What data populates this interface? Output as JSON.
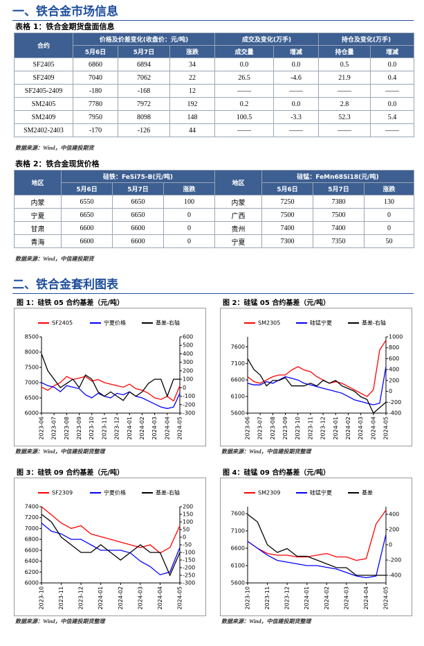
{
  "sections": [
    "一、铁合金市场信息",
    "二、铁合金套利图表"
  ],
  "table1": {
    "caption": "表格 1：铁合金期货盘面信息",
    "header1": [
      "合约",
      "价格及价差变化(收盘价：元/吨)",
      "成交及变化(万手)",
      "持仓及变化(万手)"
    ],
    "header2": [
      "5月6日",
      "5月7日",
      "涨跌",
      "成交量",
      "增减",
      "持仓量",
      "增减"
    ],
    "rows": [
      [
        "SF2405",
        "6860",
        "6894",
        "34",
        "0.0",
        "0.0",
        "0.5",
        "0.0"
      ],
      [
        "SF2409",
        "7040",
        "7062",
        "22",
        "26.5",
        "-4.6",
        "21.9",
        "0.4"
      ],
      [
        "SF2405-2409",
        "-180",
        "-168",
        "12",
        "——",
        "——",
        "——",
        "——"
      ],
      [
        "SM2405",
        "7780",
        "7972",
        "192",
        "0.2",
        "0.0",
        "2.8",
        "0.0"
      ],
      [
        "SM2409",
        "7950",
        "8098",
        "148",
        "100.5",
        "-3.3",
        "52.3",
        "5.4"
      ],
      [
        "SM2402-2403",
        "-170",
        "-126",
        "44",
        "——",
        "——",
        "——",
        "——"
      ]
    ],
    "source": "数据来源：Wind，中信建投期货"
  },
  "table2": {
    "caption": "表格 2：铁合金现货价格",
    "header1": [
      "地区",
      "硅铁：FeSi75-B(元/吨)",
      "地区",
      "硅锰：FeMn68Si18(元/吨)"
    ],
    "header2": [
      "5月6日",
      "5月7日",
      "涨跌",
      "5月6日",
      "5月7日",
      "涨跌"
    ],
    "rows": [
      [
        "内蒙",
        "6550",
        "6650",
        "100",
        "内蒙",
        "7250",
        "7380",
        "130"
      ],
      [
        "宁夏",
        "6650",
        "6650",
        "0",
        "广西",
        "7500",
        "7500",
        "0"
      ],
      [
        "甘肃",
        "6600",
        "6600",
        "0",
        "贵州",
        "7400",
        "7400",
        "0"
      ],
      [
        "青海",
        "6600",
        "6600",
        "0",
        "宁夏",
        "7300",
        "7350",
        "50"
      ]
    ],
    "source": "数据来源：Wind，中信建投期货"
  },
  "chart_data": [
    {
      "type": "line",
      "title": "图 1：硅铁 05 合约基差（元/吨）",
      "source": "数据来源：Wind，中信建投期货整理",
      "categories": [
        "2023-06",
        null,
        "2023-07",
        null,
        "2023-08",
        null,
        "2023-09",
        null,
        "2023-10",
        null,
        "2023-11",
        null,
        "2023-12",
        null,
        "2024-01",
        null,
        "2024-02",
        null,
        "2024-03",
        null,
        "2024-04",
        null,
        "2024-05"
      ],
      "ylim": [
        6000,
        8500
      ],
      "yticks": [
        6000,
        6500,
        7000,
        7500,
        8000,
        8500
      ],
      "y2lim": [
        -300,
        600
      ],
      "y2ticks": [
        -300,
        -200,
        -100,
        0,
        100,
        200,
        300,
        400,
        500,
        600
      ],
      "series": [
        {
          "name": "SF2405",
          "color": "#ff0000",
          "values": [
            6850,
            6750,
            6900,
            7000,
            7200,
            7100,
            7150,
            7200,
            7050,
            7100,
            7000,
            6950,
            6900,
            6850,
            6950,
            6800,
            6750,
            6650,
            6500,
            6450,
            6550,
            6400,
            6900
          ]
        },
        {
          "name": "宁夏价格",
          "color": "#0000ff",
          "values": [
            7000,
            6900,
            6850,
            6700,
            6900,
            6850,
            6800,
            6600,
            6500,
            6650,
            6550,
            6500,
            6650,
            6600,
            6700,
            6550,
            6500,
            6400,
            6300,
            6200,
            6150,
            6200,
            6650
          ]
        },
        {
          "name": "基差-右轴",
          "color": "#000000",
          "axis": "y2",
          "values": [
            400,
            200,
            100,
            0,
            50,
            100,
            0,
            150,
            100,
            -50,
            -100,
            -50,
            -100,
            -150,
            -50,
            -100,
            -50,
            50,
            100,
            100,
            -100,
            100,
            100
          ]
        }
      ]
    },
    {
      "type": "line",
      "title": "图 2：硅锰 05 合约基差（元/吨）",
      "source": "数据来源：Wind，中信建投期货整理",
      "categories": [
        "2023-06",
        null,
        "2023-07",
        null,
        "2023-08",
        null,
        "2023-09",
        null,
        "2023-10",
        null,
        "2023-11",
        null,
        "2023-12",
        null,
        "2024-01",
        null,
        "2024-02",
        null,
        "2024-03",
        null,
        "2024-04",
        null,
        "2024-05"
      ],
      "ylim": [
        5600,
        7900
      ],
      "yticks": [
        5600,
        6100,
        6600,
        7100,
        7600
      ],
      "y2lim": [
        -400,
        1000
      ],
      "y2ticks": [
        -400,
        -200,
        0,
        200,
        400,
        600,
        800,
        1000
      ],
      "series": [
        {
          "name": "SM2305",
          "color": "#ff0000",
          "values": [
            6700,
            6550,
            6500,
            6600,
            6700,
            6750,
            6750,
            6900,
            7000,
            6900,
            6850,
            6700,
            6600,
            6500,
            6550,
            6500,
            6400,
            6300,
            6200,
            6100,
            6300,
            7500,
            7800
          ]
        },
        {
          "name": "硅锰宁夏",
          "color": "#0000ff",
          "values": [
            6500,
            6450,
            6450,
            6550,
            6500,
            6600,
            6700,
            6650,
            6600,
            6500,
            6450,
            6400,
            6350,
            6300,
            6250,
            6200,
            6100,
            6000,
            5950,
            5900,
            5850,
            5900,
            7000
          ]
        },
        {
          "name": "基差-右轴",
          "color": "#000000",
          "axis": "y2",
          "values": [
            600,
            400,
            300,
            100,
            200,
            200,
            250,
            100,
            100,
            100,
            150,
            100,
            200,
            150,
            200,
            100,
            50,
            0,
            -100,
            -150,
            -400,
            -300,
            -200
          ]
        }
      ]
    },
    {
      "type": "line",
      "title": "图 3：硅铁 09 合约基差（元/吨）",
      "source": "数据来源：Wind，中信建投期货整理",
      "categories": [
        "2023-10",
        null,
        "2023-11",
        null,
        "2023-12",
        null,
        "2024-01",
        null,
        "2024-02",
        null,
        "2024-03",
        null,
        "2024-04",
        null,
        "2024-05"
      ],
      "ylim": [
        6000,
        7400
      ],
      "yticks": [
        6000,
        6200,
        6400,
        6600,
        6800,
        7000,
        7200,
        7400
      ],
      "y2lim": [
        -300,
        200
      ],
      "y2ticks": [
        -300,
        -250,
        -200,
        -150,
        -100,
        -50,
        0,
        50,
        100,
        150,
        200
      ],
      "series": [
        {
          "name": "SF2309",
          "color": "#ff0000",
          "values": [
            7400,
            7250,
            7100,
            7000,
            7050,
            6900,
            6850,
            6800,
            6750,
            6700,
            6650,
            6700,
            6550,
            6650,
            7050
          ]
        },
        {
          "name": "宁夏价格",
          "color": "#0000ff",
          "values": [
            7100,
            6950,
            6900,
            6800,
            6800,
            6700,
            6600,
            6600,
            6600,
            6550,
            6400,
            6300,
            6150,
            6200,
            6650
          ]
        },
        {
          "name": "基差-右轴",
          "color": "#000000",
          "axis": "y2",
          "values": [
            150,
            100,
            0,
            -50,
            -100,
            -100,
            -50,
            -100,
            -150,
            -100,
            -50,
            -100,
            -100,
            -250,
            -100
          ]
        }
      ]
    },
    {
      "type": "line",
      "title": "图 4：硅锰 09 合约基差（元/吨）",
      "source": "数据来源：Wind，中信建投期货整理",
      "categories": [
        "2023-10",
        null,
        "2023-11",
        null,
        "2023-12",
        null,
        "2024-01",
        null,
        "2024-02",
        null,
        "2024-03",
        null,
        "2024-04",
        null,
        "2024-05"
      ],
      "ylim": [
        5600,
        7800
      ],
      "yticks": [
        5600,
        6100,
        6600,
        7100,
        7600
      ],
      "y2lim": [
        -500,
        500
      ],
      "y2ticks": [
        -400,
        -200,
        0,
        200,
        400
      ],
      "series": [
        {
          "name": "SM2309",
          "color": "#ff0000",
          "values": [
            6800,
            6600,
            6450,
            6400,
            6400,
            6350,
            6350,
            6400,
            6450,
            6350,
            6350,
            6250,
            6300,
            7300,
            7700
          ]
        },
        {
          "name": "硅锰宁夏",
          "color": "#0000ff",
          "values": [
            6800,
            6600,
            6400,
            6250,
            6200,
            6150,
            6100,
            6100,
            6050,
            6000,
            5900,
            5800,
            5750,
            5800,
            7000
          ]
        },
        {
          "name": "基差",
          "color": "#000000",
          "axis": "y2",
          "values": [
            400,
            300,
            0,
            -100,
            -50,
            -150,
            -150,
            -200,
            -250,
            -300,
            -300,
            -400,
            -400,
            -400,
            -400
          ]
        }
      ]
    }
  ]
}
